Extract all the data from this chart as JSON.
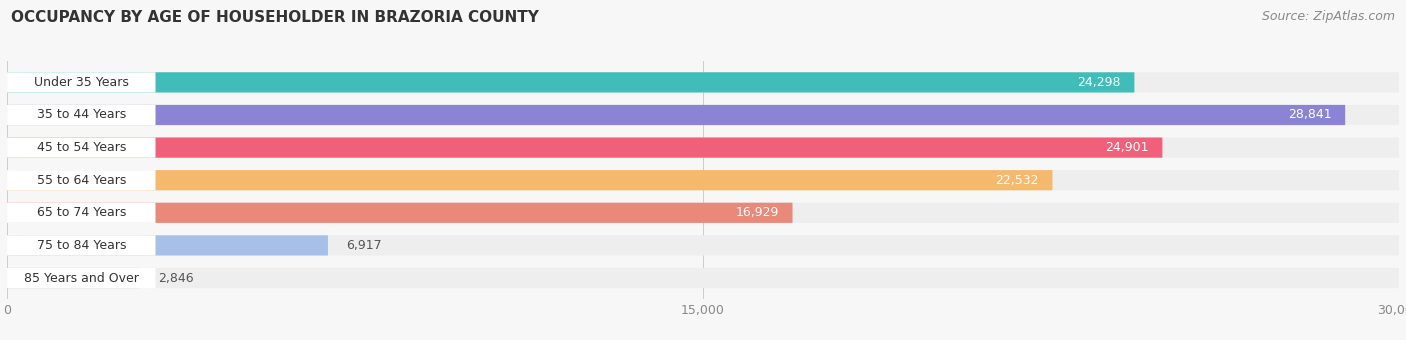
{
  "title": "OCCUPANCY BY AGE OF HOUSEHOLDER IN BRAZORIA COUNTY",
  "source": "Source: ZipAtlas.com",
  "categories": [
    "Under 35 Years",
    "35 to 44 Years",
    "45 to 54 Years",
    "55 to 64 Years",
    "65 to 74 Years",
    "75 to 84 Years",
    "85 Years and Over"
  ],
  "values": [
    24298,
    28841,
    24901,
    22532,
    16929,
    6917,
    2846
  ],
  "bar_colors": [
    "#40bdb8",
    "#8b84d4",
    "#f0607a",
    "#f5b96e",
    "#e8897a",
    "#a8c0e8",
    "#c8a8d8"
  ],
  "bar_bg_colors": [
    "#eeeeee",
    "#eeeeee",
    "#eeeeee",
    "#eeeeee",
    "#eeeeee",
    "#eeeeee",
    "#eeeeee"
  ],
  "xlim": [
    0,
    30000
  ],
  "xticks": [
    0,
    15000,
    30000
  ],
  "title_fontsize": 11,
  "source_fontsize": 9,
  "label_fontsize": 9,
  "value_fontsize": 9,
  "background_color": "#f7f7f7",
  "bar_height": 0.62,
  "bar_gap": 0.38
}
